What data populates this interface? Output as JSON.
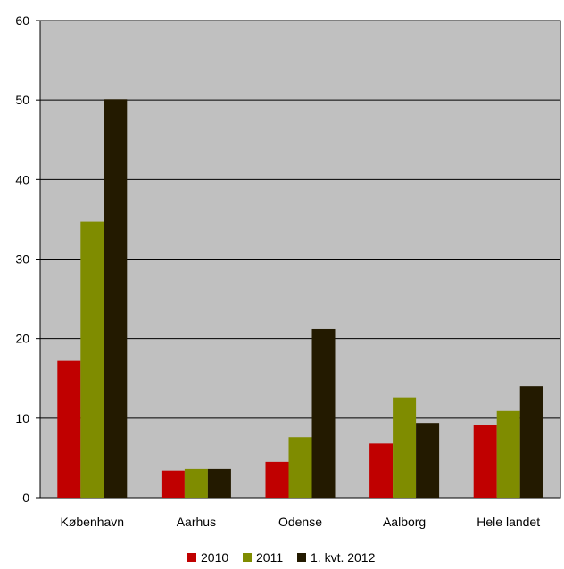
{
  "chart_data": {
    "type": "bar",
    "categories": [
      "København",
      "Aarhus",
      "Odense",
      "Aalborg",
      "Hele landet"
    ],
    "series": [
      {
        "name": "2010",
        "color": "#c00000",
        "values": [
          17.2,
          3.4,
          4.5,
          6.8,
          9.1
        ]
      },
      {
        "name": "2011",
        "color": "#7f8c00",
        "values": [
          34.7,
          3.6,
          7.6,
          12.6,
          10.9
        ]
      },
      {
        "name": "1. kvt. 2012",
        "color": "#231a00",
        "values": [
          50.1,
          3.6,
          21.2,
          9.4,
          14.0
        ]
      }
    ],
    "ylim": [
      0,
      60
    ],
    "yticks": [
      "0",
      "10",
      "20",
      "30",
      "40",
      "50",
      "60"
    ],
    "title": "",
    "xlabel": "",
    "ylabel": "",
    "grid": "horizontal",
    "legend": "bottom",
    "plot_background": "#c0c0c0"
  }
}
